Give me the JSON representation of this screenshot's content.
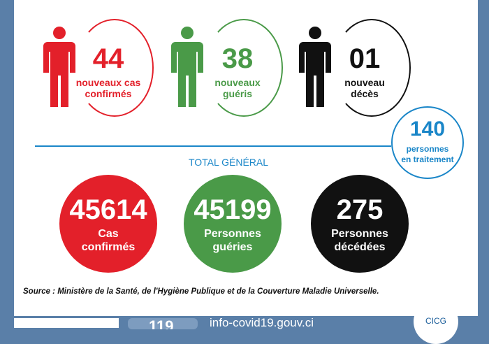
{
  "daily": [
    {
      "value": "44",
      "label_1": "nouveaux cas",
      "label_2": "confirmés",
      "color": "#e3202a"
    },
    {
      "value": "38",
      "label_1": "nouveaux",
      "label_2": "guéris",
      "color": "#4a9a48"
    },
    {
      "value": "01",
      "label_1": "nouveau",
      "label_2": "décès",
      "color": "#111111"
    }
  ],
  "treatment": {
    "value": "140",
    "label_1": "personnes",
    "label_2": "en traitement",
    "color": "#1a86c8"
  },
  "total_title": "TOTAL GÉNÉRAL",
  "totals": [
    {
      "value": "45614",
      "label_1": "Cas",
      "label_2": "confirmés",
      "color": "#e3202a"
    },
    {
      "value": "45199",
      "label_1": "Personnes",
      "label_2": "guéries",
      "color": "#4a9a48"
    },
    {
      "value": "275",
      "label_1": "Personnes",
      "label_2": "décédées",
      "color": "#111111"
    }
  ],
  "source": "Source : Ministère de la Santé, de l'Hygiène Publique et de la Couverture Maladie Universelle.",
  "footer": {
    "hotline": "119",
    "website": "info-covid19.gouv.ci",
    "logo": "CICG"
  }
}
